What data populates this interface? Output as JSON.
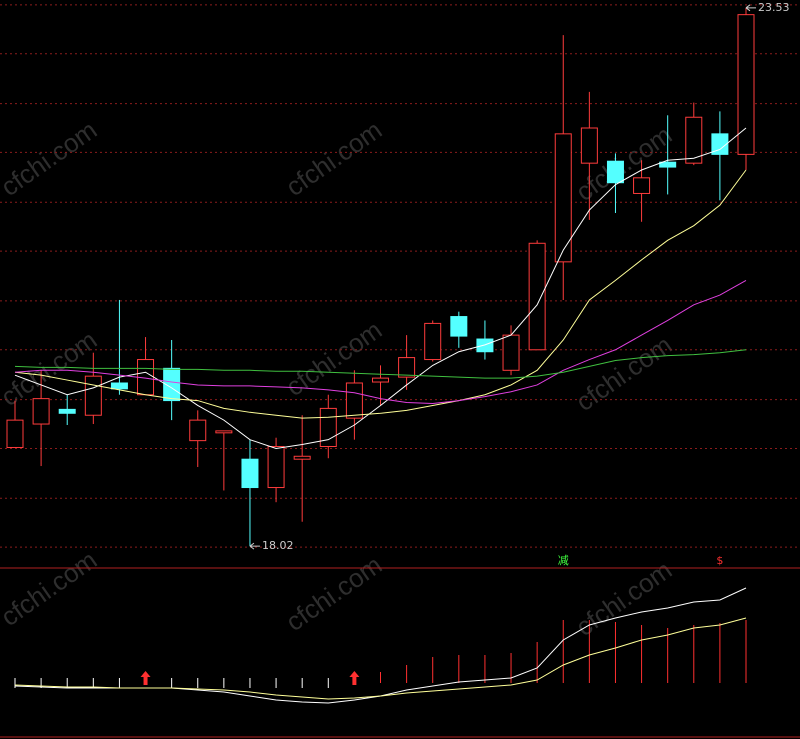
{
  "chart_data": {
    "type": "candlestick",
    "watermark": "cfchi.com",
    "ylim": [
      17.95,
      23.61
    ],
    "grid_levels": [
      23.56,
      23.06,
      22.55,
      22.05,
      21.54,
      21.04,
      20.53,
      20.03,
      19.52,
      19.02,
      18.51,
      18.01
    ],
    "up_color": "#ff3c3c",
    "down_color": "#54ffff",
    "open": [
      19.03,
      19.27,
      19.42,
      19.36,
      19.69,
      19.57,
      19.84,
      19.1,
      19.18,
      18.91,
      18.62,
      18.91,
      19.04,
      19.33,
      19.7,
      19.75,
      19.93,
      20.37,
      20.14,
      19.82,
      20.03,
      20.93,
      21.94,
      21.96,
      21.63,
      21.95,
      21.94,
      22.24,
      22.03
    ],
    "high": [
      19.51,
      19.82,
      19.57,
      20.0,
      20.54,
      20.16,
      20.13,
      19.41,
      19.2,
      19.11,
      19.13,
      19.36,
      19.57,
      19.82,
      19.87,
      20.18,
      20.33,
      20.42,
      20.33,
      20.28,
      21.15,
      23.25,
      22.67,
      22.04,
      21.97,
      22.43,
      22.56,
      22.47,
      23.53
    ],
    "low": [
      19.03,
      18.84,
      19.26,
      19.27,
      19.57,
      19.57,
      19.31,
      18.83,
      18.59,
      18.02,
      18.47,
      18.27,
      18.92,
      19.11,
      19.46,
      19.62,
      19.91,
      20.05,
      19.93,
      19.77,
      20.03,
      20.54,
      21.36,
      21.43,
      21.34,
      21.62,
      21.92,
      21.56,
      21.87
    ],
    "close": [
      19.31,
      19.53,
      19.38,
      19.76,
      19.63,
      19.93,
      19.51,
      19.31,
      19.2,
      18.62,
      19.04,
      18.94,
      19.43,
      19.69,
      19.74,
      19.95,
      20.3,
      20.17,
      20.01,
      20.18,
      21.12,
      22.24,
      22.3,
      21.74,
      21.79,
      21.9,
      22.41,
      22.03,
      23.46
    ],
    "moving_averages": [
      {
        "color": "#ffffff",
        "values": [
          19.77,
          19.67,
          19.57,
          19.64,
          19.75,
          19.8,
          19.64,
          19.46,
          19.31,
          19.11,
          19.02,
          19.06,
          19.11,
          19.26,
          19.46,
          19.67,
          19.87,
          20.01,
          20.08,
          20.18,
          20.49,
          21.05,
          21.46,
          21.72,
          21.87,
          21.97,
          21.99,
          22.08,
          22.3
        ]
      },
      {
        "color": "#ffff99",
        "values": [
          19.8,
          19.77,
          19.72,
          19.67,
          19.62,
          19.57,
          19.53,
          19.51,
          19.43,
          19.39,
          19.36,
          19.33,
          19.34,
          19.36,
          19.38,
          19.41,
          19.46,
          19.51,
          19.57,
          19.67,
          19.82,
          20.13,
          20.54,
          20.74,
          20.95,
          21.15,
          21.3,
          21.51,
          21.87
        ]
      },
      {
        "color": "#e040e0",
        "values": [
          19.8,
          19.82,
          19.82,
          19.8,
          19.77,
          19.74,
          19.7,
          19.67,
          19.66,
          19.66,
          19.65,
          19.64,
          19.62,
          19.59,
          19.53,
          19.49,
          19.48,
          19.51,
          19.55,
          19.6,
          19.67,
          19.82,
          19.93,
          20.03,
          20.18,
          20.33,
          20.49,
          20.59,
          20.74
        ]
      },
      {
        "color": "#40c040",
        "values": [
          19.86,
          19.85,
          19.85,
          19.84,
          19.84,
          19.84,
          19.83,
          19.83,
          19.82,
          19.82,
          19.81,
          19.81,
          19.8,
          19.79,
          19.78,
          19.77,
          19.76,
          19.75,
          19.74,
          19.74,
          19.76,
          19.8,
          19.86,
          19.92,
          19.95,
          19.97,
          19.98,
          20.0,
          20.03
        ]
      }
    ],
    "extremes": [
      {
        "value": 23.53,
        "index": 28
      },
      {
        "value": 18.02,
        "index": 9
      }
    ],
    "indicator": {
      "ylim": [
        -56,
        115
      ],
      "bars": [
        5,
        5,
        5,
        5,
        5,
        5,
        5,
        5,
        5,
        5,
        5,
        5,
        5,
        5,
        11,
        18,
        26,
        28,
        28,
        30,
        41,
        63,
        63,
        61,
        58,
        55,
        58,
        60,
        63
      ],
      "bar_colors": [
        "#ffffff",
        "#ffffff",
        "#ffffff",
        "#ffffff",
        "#ffffff",
        "#ff3030",
        "#ffffff",
        "#ffffff",
        "#ffffff",
        "#ffffff",
        "#ffffff",
        "#ffffff",
        "#ffffff",
        "#ff3030",
        "#ff3030",
        "#ff3030",
        "#ff3030",
        "#ff3030",
        "#ff3030",
        "#ff3030",
        "#ff3030",
        "#ff3030",
        "#ff3030",
        "#ff3030",
        "#ff3030",
        "#ff3030",
        "#ff3030",
        "#ff3030",
        "#ff3030"
      ],
      "signals": [
        5,
        13
      ],
      "lines": [
        {
          "color": "#ffffff",
          "values": [
            -3,
            -4,
            -5,
            -5,
            -5,
            -5,
            -5,
            -7,
            -9,
            -13,
            -17,
            -19,
            -20,
            -17,
            -13,
            -7,
            -3,
            1,
            3,
            5,
            15,
            43,
            58,
            65,
            71,
            75,
            81,
            83,
            95
          ]
        },
        {
          "color": "#ffff99",
          "values": [
            -2,
            -3,
            -4,
            -4,
            -5,
            -5,
            -5,
            -6,
            -7,
            -9,
            -12,
            -14,
            -16,
            -15,
            -13,
            -10,
            -8,
            -6,
            -4,
            -2,
            3,
            18,
            28,
            35,
            43,
            48,
            55,
            58,
            65
          ]
        }
      ],
      "annotations": [
        {
          "text": "减",
          "index": 21,
          "color": "#40ff40"
        },
        {
          "text": "$",
          "index": 27,
          "color": "#ff3030"
        }
      ]
    }
  }
}
